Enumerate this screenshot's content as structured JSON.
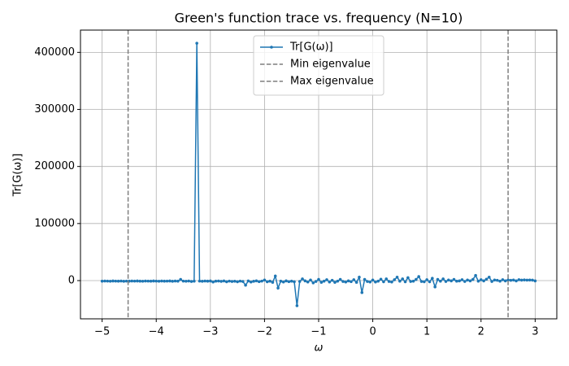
{
  "chart_data": {
    "type": "line",
    "title": "Green's function trace vs. frequency (N=10)",
    "x_label": "ω",
    "y_label": "Tr[G(ω)]",
    "xlim": [
      -5.4,
      3.4
    ],
    "ylim": [
      -67000,
      439000
    ],
    "xticks": [
      {
        "value": -5,
        "label": "−5"
      },
      {
        "value": -4,
        "label": "−4"
      },
      {
        "value": -3,
        "label": "−3"
      },
      {
        "value": -2,
        "label": "−2"
      },
      {
        "value": -1,
        "label": "−1"
      },
      0,
      1,
      2,
      3
    ],
    "yticks": [
      0,
      100000,
      200000,
      300000,
      400000
    ],
    "grid": true,
    "legend": "upper center",
    "series": [
      {
        "name": "Tr[G(ω)]",
        "color": "#1f77b4",
        "x": [
          -5,
          -4.95,
          -4.9,
          -4.85,
          -4.8,
          -4.75,
          -4.7,
          -4.65,
          -4.6,
          -4.55,
          -4.5,
          -4.45,
          -4.4,
          -4.35,
          -4.3,
          -4.25,
          -4.2,
          -4.15,
          -4.1,
          -4.05,
          -4,
          -3.95,
          -3.9,
          -3.85,
          -3.8,
          -3.75,
          -3.7,
          -3.65,
          -3.6,
          -3.55,
          -3.5,
          -3.45,
          -3.4,
          -3.35,
          -3.3,
          -3.25,
          -3.2,
          -3.15,
          -3.1,
          -3.05,
          -3,
          -2.95,
          -2.9,
          -2.85,
          -2.8,
          -2.75,
          -2.7,
          -2.65,
          -2.6,
          -2.55,
          -2.5,
          -2.45,
          -2.4,
          -2.35,
          -2.3,
          -2.25,
          -2.2,
          -2.15,
          -2.1,
          -2.05,
          -2,
          -1.95,
          -1.9,
          -1.85,
          -1.8,
          -1.75,
          -1.7,
          -1.65,
          -1.6,
          -1.55,
          -1.5,
          -1.45,
          -1.4,
          -1.35,
          -1.3,
          -1.25,
          -1.2,
          -1.15,
          -1.1,
          -1.05,
          -1,
          -0.95,
          -0.9,
          -0.85,
          -0.8,
          -0.75,
          -0.7,
          -0.65,
          -0.6,
          -0.55,
          -0.5,
          -0.45,
          -0.4,
          -0.35,
          -0.3,
          -0.25,
          -0.2,
          -0.15,
          -0.1,
          -0.05,
          0,
          0.05,
          0.1,
          0.15,
          0.2,
          0.25,
          0.3,
          0.35,
          0.4,
          0.45,
          0.5,
          0.55,
          0.6,
          0.65,
          0.7,
          0.75,
          0.8,
          0.85,
          0.9,
          0.95,
          1,
          1.05,
          1.1,
          1.15,
          1.2,
          1.25,
          1.3,
          1.35,
          1.4,
          1.45,
          1.5,
          1.55,
          1.6,
          1.65,
          1.7,
          1.75,
          1.8,
          1.85,
          1.9,
          1.95,
          2,
          2.05,
          2.1,
          2.15,
          2.2,
          2.25,
          2.3,
          2.35,
          2.4,
          2.45,
          2.5,
          2.55,
          2.6,
          2.65,
          2.7,
          2.75,
          2.8,
          2.85,
          2.9,
          2.95,
          3
        ],
        "values": [
          -1000,
          -800,
          -900,
          -1100,
          -700,
          -900,
          -1000,
          -800,
          -1200,
          -900,
          -1000,
          -800,
          -900,
          -700,
          -1000,
          -1100,
          -800,
          -900,
          -1000,
          -700,
          -900,
          -1100,
          -800,
          -1000,
          -900,
          -700,
          -1200,
          -800,
          -1000,
          2000,
          -900,
          -1100,
          -800,
          -1500,
          -1000,
          416000,
          -900,
          -1200,
          -800,
          -1000,
          -700,
          -2500,
          -1000,
          -800,
          -1300,
          -600,
          -2000,
          -900,
          -1500,
          -1100,
          -2000,
          -900,
          -1500,
          -8000,
          -600,
          -2500,
          -1200,
          -400,
          -1800,
          -900,
          1000,
          -2000,
          -1000,
          -3000,
          8000,
          -13000,
          -1000,
          -2500,
          -500,
          -1800,
          -1000,
          -2000,
          -44000,
          -1500,
          3000,
          -500,
          -2500,
          1000,
          -4000,
          -1500,
          2000,
          -3000,
          -1000,
          1500,
          -2500,
          500,
          -3000,
          -1000,
          2000,
          -1500,
          -2500,
          -500,
          -1800,
          1500,
          -3000,
          6000,
          -21000,
          2000,
          -1500,
          -2500,
          1000,
          -2500,
          -1000,
          2500,
          -2000,
          3000,
          -1500,
          -2500,
          1500,
          6000,
          -1000,
          3000,
          -2000,
          5000,
          -1500,
          -1000,
          2000,
          7000,
          -1500,
          -2000,
          1500,
          -2000,
          4000,
          -11000,
          2000,
          -1000,
          3000,
          -1500,
          1000,
          -500,
          2000,
          -1000,
          -500,
          1500,
          -1500,
          1000,
          -500,
          2000,
          9000,
          -1000,
          1500,
          -500,
          2500,
          6000,
          -1500,
          1000,
          500,
          -1000,
          1500,
          -500,
          1000,
          500,
          1000,
          -500,
          1500,
          800,
          1200,
          900,
          1000,
          800,
          -500
        ]
      }
    ],
    "vlines": [
      {
        "name": "Min eigenvalue",
        "x": -4.52,
        "color": "#7f7f7f"
      },
      {
        "name": "Max eigenvalue",
        "x": 2.5,
        "color": "#7f7f7f"
      }
    ]
  }
}
